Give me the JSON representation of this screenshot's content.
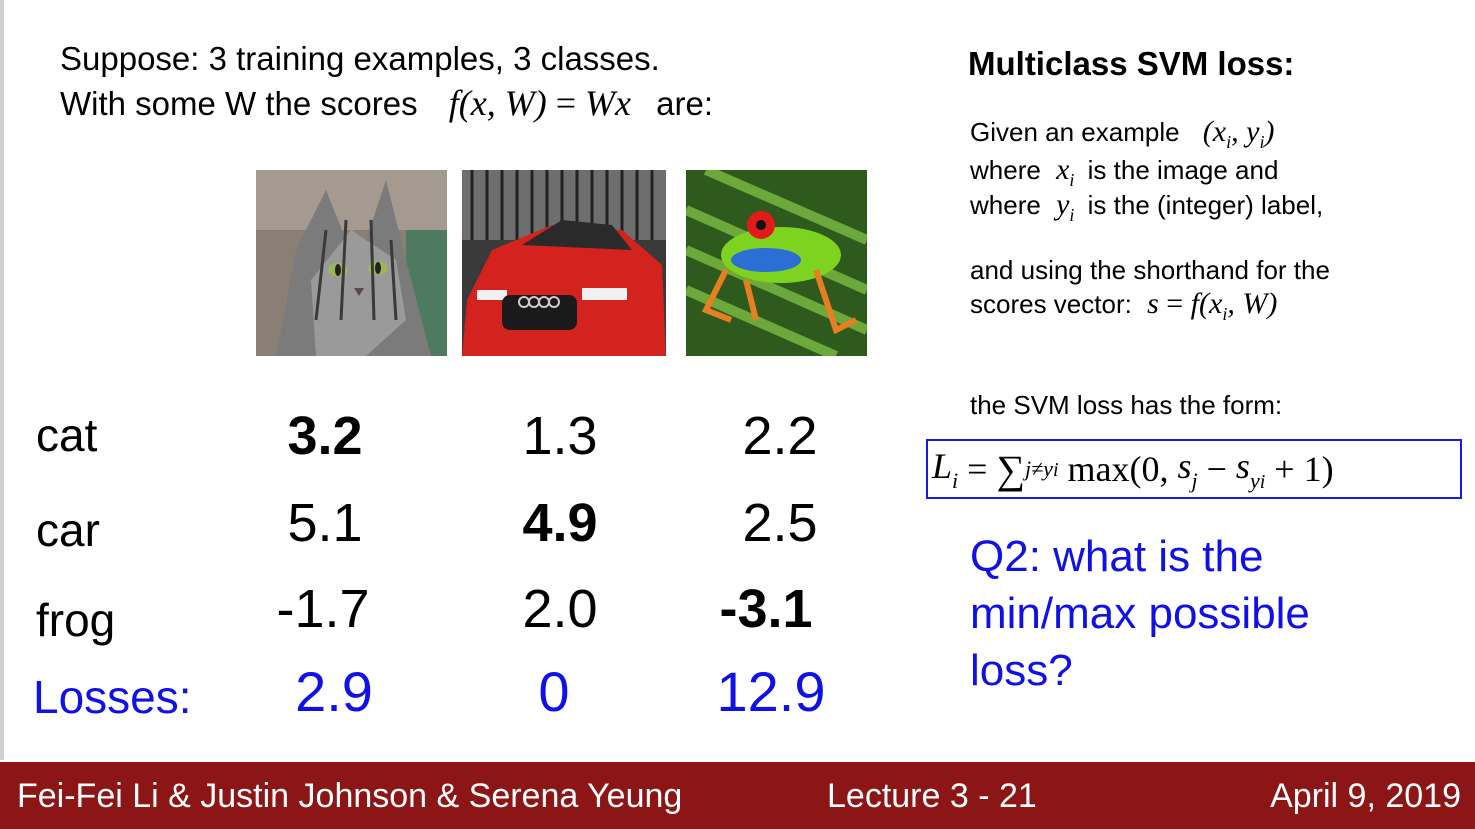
{
  "intro": {
    "line1": "Suppose: 3 training examples, 3 classes.",
    "line2_text": "With some W the scores",
    "line2_formula_lhs": "f(x, W)",
    "line2_formula_rhs": "Wx",
    "line2_end": "are:"
  },
  "images": [
    {
      "icon": "cat-photo"
    },
    {
      "icon": "car-photo"
    },
    {
      "icon": "frog-photo"
    }
  ],
  "scores_table": {
    "rows": [
      {
        "label": "cat",
        "values": [
          "3.2",
          "1.3",
          "2.2"
        ]
      },
      {
        "label": "car",
        "values": [
          "5.1",
          "4.9",
          "2.5"
        ]
      },
      {
        "label": "frog",
        "values": [
          "-1.7",
          "2.0",
          "-3.1"
        ]
      }
    ],
    "losses_label": "Losses:",
    "losses": [
      "2.9",
      "0",
      "12.9"
    ],
    "loss_color": "#1010e8"
  },
  "right_panel": {
    "title": "Multiclass SVM loss:",
    "given_text": "Given an example",
    "given_math": "(x",
    "where1_text": "where",
    "where1_rest": "is the image and",
    "where2_text": "where",
    "where2_rest": "is the (integer) label,",
    "shorthand_line1": "and using the shorthand for the",
    "shorthand_line2": "scores vector:",
    "form_text": "the SVM loss has the form:",
    "question": "Q2: what is the min/max possible loss?"
  },
  "footer": {
    "authors": "Fei-Fei Li & Justin Johnson & Serena Yeung",
    "lecture": "Lecture 3 -  21",
    "date": "April 9, 2019",
    "background": "#8c1515"
  }
}
